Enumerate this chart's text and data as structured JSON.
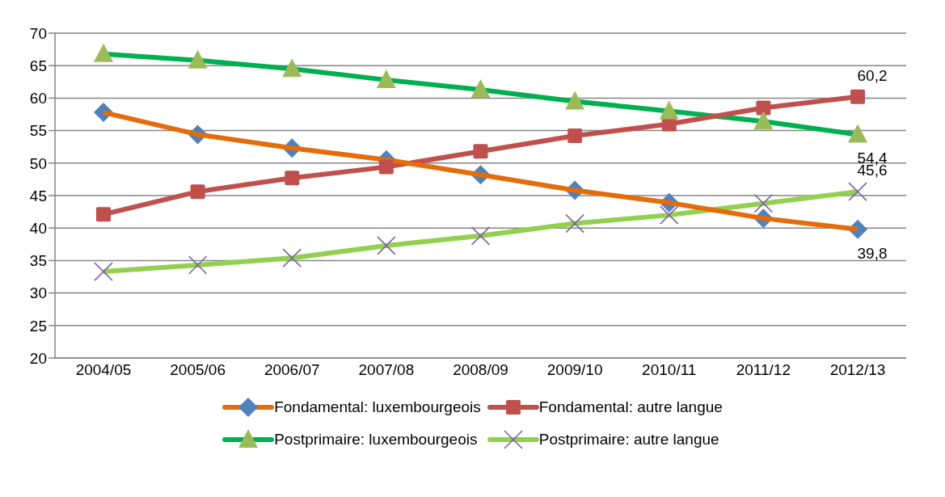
{
  "chart_data": {
    "type": "line",
    "categories": [
      "2004/05",
      "2005/06",
      "2006/07",
      "2007/08",
      "2008/09",
      "2009/10",
      "2010/11",
      "2011/12",
      "2012/13"
    ],
    "series": [
      {
        "name": "Fondamental: luxembourgeois",
        "color": "#e46c0a",
        "colors": [
          "#4f81bd",
          "#4f81bd",
          "#4f81bd",
          "#4f81bd",
          "#4f81bd",
          "#4f81bd",
          "#4f81bd",
          "#4f81bd",
          "#4f81bd"
        ],
        "marker": "diamond",
        "values": [
          57.8,
          54.4,
          52.3,
          50.5,
          48.2,
          45.8,
          43.9,
          41.5,
          39.8
        ],
        "value_labels": [
          null,
          null,
          null,
          null,
          null,
          null,
          null,
          null,
          "39,8"
        ]
      },
      {
        "name": "Fondamental: autre langue",
        "color": "#c0504d",
        "colors": [
          "#c0504d",
          "#c0504d",
          "#c0504d",
          "#c0504d",
          "#c0504d",
          "#c0504d",
          "#c0504d",
          "#c0504d",
          "#c0504d"
        ],
        "marker": "square",
        "values": [
          42.1,
          45.6,
          47.7,
          49.4,
          51.8,
          54.2,
          56.0,
          58.5,
          60.2
        ],
        "value_labels": [
          null,
          null,
          null,
          null,
          null,
          null,
          null,
          null,
          "60,2"
        ]
      },
      {
        "name": "Postprimaire: luxembourgeois",
        "color": "#00b050",
        "colors": [
          "#9bbb59",
          "#9bbb59",
          "#9bbb59",
          "#9bbb59",
          "#9bbb59",
          "#9bbb59",
          "#9bbb59",
          "#9bbb59",
          "#9bbb59"
        ],
        "marker": "triangle",
        "values": [
          66.8,
          65.8,
          64.5,
          62.8,
          61.3,
          59.5,
          58.0,
          56.4,
          54.4
        ],
        "value_labels": [
          null,
          null,
          null,
          null,
          null,
          null,
          null,
          null,
          "54,4"
        ]
      },
      {
        "name": "Postprimaire: autre langue",
        "color": "#92d050",
        "colors": [
          "#8064a2",
          "#8064a2",
          "#8064a2",
          "#8064a2",
          "#8064a2",
          "#8064a2",
          "#8064a2",
          "#8064a2",
          "#8064a2"
        ],
        "marker": "cross",
        "values": [
          33.3,
          34.3,
          35.4,
          37.3,
          38.8,
          40.7,
          42.0,
          43.8,
          45.6
        ],
        "value_labels": [
          null,
          null,
          null,
          null,
          null,
          null,
          null,
          null,
          "45,6"
        ]
      }
    ],
    "ylim": [
      20,
      70
    ],
    "yticks": [
      20,
      25,
      30,
      35,
      40,
      45,
      50,
      55,
      60,
      65,
      70
    ],
    "grid": "y",
    "legend": "bottom",
    "line_style": "solid"
  }
}
